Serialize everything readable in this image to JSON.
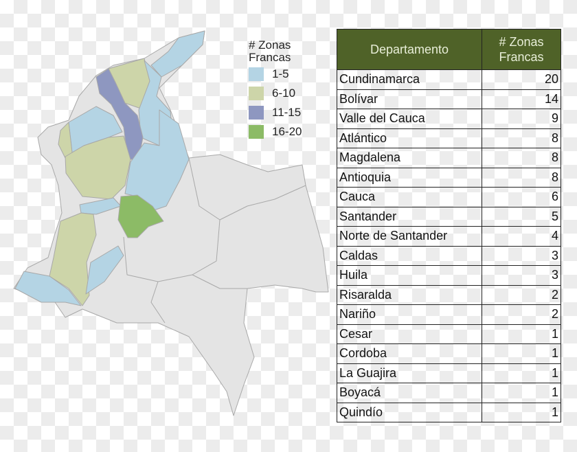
{
  "legend": {
    "title_line1": "# Zonas",
    "title_line2": "Francas",
    "items": [
      {
        "label": "1-5",
        "color": "#b4d4e4"
      },
      {
        "label": "6-10",
        "color": "#cdd5a9"
      },
      {
        "label": "11-15",
        "color": "#8e97c0"
      },
      {
        "label": "16-20",
        "color": "#8cbb66"
      }
    ],
    "no_data_color": "#e4e4e4"
  },
  "table": {
    "header": {
      "col1": "Departamento",
      "col2_line1": "# Zonas",
      "col2_line2": "Francas",
      "color": "#4f6228"
    },
    "rows": [
      {
        "departamento": "Cundinamarca",
        "zonas": "20"
      },
      {
        "departamento": "Bolívar",
        "zonas": "14"
      },
      {
        "departamento": "Valle del Cauca",
        "zonas": "9"
      },
      {
        "departamento": "Atlántico",
        "zonas": "8"
      },
      {
        "departamento": "Magdalena",
        "zonas": "8"
      },
      {
        "departamento": "Antioquia",
        "zonas": "8"
      },
      {
        "departamento": "Cauca",
        "zonas": "6"
      },
      {
        "departamento": "Santander",
        "zonas": "5"
      },
      {
        "departamento": "Norte de Santander",
        "zonas": "4"
      },
      {
        "departamento": "Caldas",
        "zonas": "3"
      },
      {
        "departamento": "Huila",
        "zonas": "3"
      },
      {
        "departamento": "Risaralda",
        "zonas": "2"
      },
      {
        "departamento": "Nariño",
        "zonas": "2"
      },
      {
        "departamento": "Cesar",
        "zonas": "1"
      },
      {
        "departamento": "Cordoba",
        "zonas": "1"
      },
      {
        "departamento": "La Guajira",
        "zonas": "1"
      },
      {
        "departamento": "Boyacá",
        "zonas": "1"
      },
      {
        "departamento": "Quindío",
        "zonas": "1"
      }
    ]
  }
}
